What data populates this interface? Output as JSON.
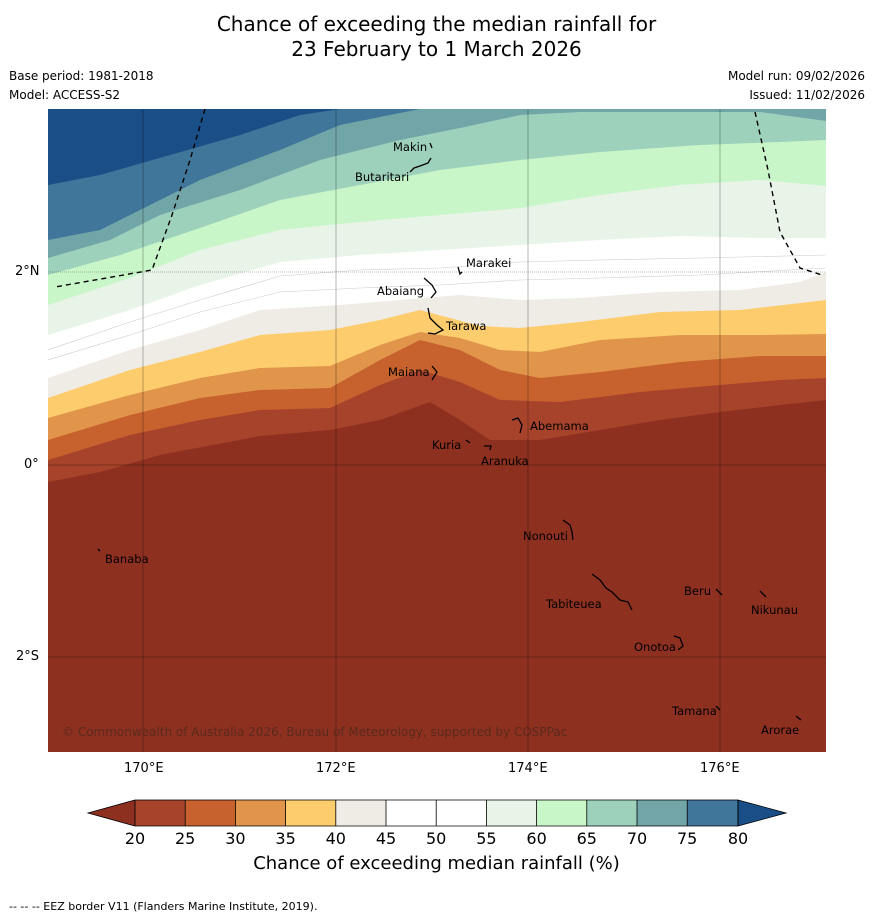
{
  "title": {
    "line1": "Chance of exceeding the median rainfall for",
    "line2": "23 February to 1 March 2026"
  },
  "meta": {
    "base_period": "Base period: 1981-2018",
    "model": "Model: ACCESS-S2",
    "model_run": "Model run: 09/02/2026",
    "issued": "Issued: 11/02/2026"
  },
  "axes": {
    "lat_labels": [
      "2°N",
      "0°",
      "2°S"
    ],
    "lon_labels": [
      "170°E",
      "172°E",
      "174°E",
      "176°E"
    ],
    "lat_values": [
      2,
      0,
      -2
    ],
    "lon_values": [
      170,
      172,
      174,
      176
    ],
    "lon_range": [
      169,
      177.1
    ],
    "lat_range": [
      -3.0,
      3.7
    ]
  },
  "places": [
    {
      "name": "Makin",
      "lon": 173.0,
      "lat": 3.37
    },
    {
      "name": "Butaritari",
      "lon": 172.8,
      "lat": 3.07
    },
    {
      "name": "Marakei",
      "lon": 173.3,
      "lat": 2.0
    },
    {
      "name": "Abaiang",
      "lon": 172.9,
      "lat": 1.8
    },
    {
      "name": "Tarawa",
      "lon": 173.0,
      "lat": 1.4
    },
    {
      "name": "Maiana",
      "lon": 173.0,
      "lat": 0.9
    },
    {
      "name": "Abemama",
      "lon": 173.85,
      "lat": 0.4
    },
    {
      "name": "Kuria",
      "lon": 173.4,
      "lat": 0.23
    },
    {
      "name": "Aranuka",
      "lon": 173.6,
      "lat": 0.17
    },
    {
      "name": "Nonouti",
      "lon": 174.4,
      "lat": -0.65
    },
    {
      "name": "Banaba",
      "lon": 169.55,
      "lat": -0.87
    },
    {
      "name": "Beru",
      "lon": 176.0,
      "lat": -1.33
    },
    {
      "name": "Tabiteuea",
      "lon": 174.8,
      "lat": -1.4
    },
    {
      "name": "Nikunau",
      "lon": 176.45,
      "lat": -1.37
    },
    {
      "name": "Onotoa",
      "lon": 175.55,
      "lat": -1.8
    },
    {
      "name": "Tamana",
      "lon": 176.0,
      "lat": -2.5
    },
    {
      "name": "Arorae",
      "lon": 176.8,
      "lat": -2.65
    }
  ],
  "copyright": "© Commonwealth of Australia 2026, Bureau of Meteorology, supported by COSPPac",
  "colorbar": {
    "ticks": [
      "20",
      "25",
      "30",
      "35",
      "40",
      "45",
      "50",
      "55",
      "60",
      "65",
      "70",
      "75",
      "80"
    ],
    "colors": [
      "#8e3020",
      "#a6432a",
      "#c7622f",
      "#e0954b",
      "#fdcc6d",
      "#efebe5",
      "#ffffff",
      "#ffffff",
      "#e9f4e8",
      "#c9f6c8",
      "#9dd1bc",
      "#72a5a8",
      "#3f7699",
      "#1a4e86"
    ],
    "label": "Chance of exceeding median rainfall (%)"
  },
  "chart_data": {
    "type": "heatmap",
    "title": "Chance of exceeding the median rainfall for 23 February to 1 March 2026",
    "variable": "Chance of exceeding median rainfall (%)",
    "levels": [
      20,
      25,
      30,
      35,
      40,
      45,
      50,
      55,
      60,
      65,
      70,
      75,
      80
    ],
    "approx_pattern": [
      {
        "lat": -2.5,
        "value_pct": "<20"
      },
      {
        "lat": -1.0,
        "value_pct": "<20"
      },
      {
        "lat": 0.0,
        "value_pct": "20-25"
      },
      {
        "lat": 0.8,
        "value_pct": "25-30"
      },
      {
        "lat": 1.2,
        "value_pct": "35-40"
      },
      {
        "lat": 1.6,
        "value_pct": "40-45"
      },
      {
        "lat": 2.0,
        "value_pct": "45-55"
      },
      {
        "lat": 2.6,
        "value_pct": "55-65"
      },
      {
        "lat": 3.2,
        "value_pct": "65-75"
      },
      {
        "lat": 3.6,
        "value_pct": ">75 (west)"
      }
    ]
  },
  "footer": "--  --  -- EEZ border V11 (Flanders Marine Institute, 2019)."
}
